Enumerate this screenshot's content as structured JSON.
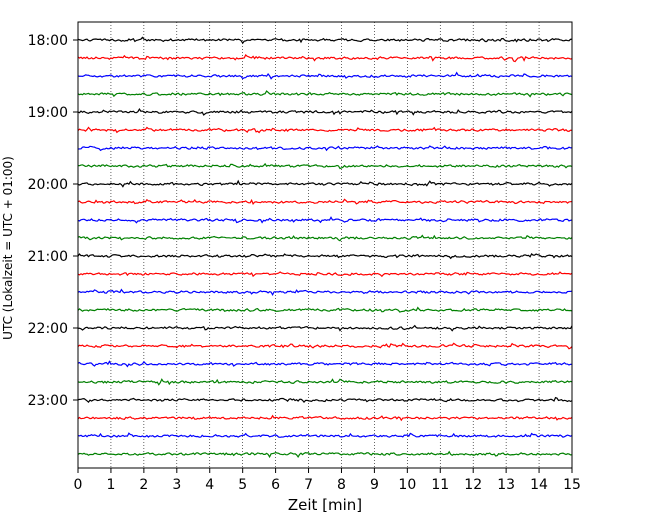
{
  "chart_data": {
    "type": "line",
    "title": "",
    "xlabel": "Zeit  [min]",
    "ylabel": "UTC (Lokalzeit = UTC + 01:00)",
    "xlim": [
      0,
      15
    ],
    "x_ticks": [
      "0",
      "1",
      "2",
      "3",
      "4",
      "5",
      "6",
      "7",
      "8",
      "9",
      "10",
      "11",
      "12",
      "13",
      "14",
      "15"
    ],
    "y_tick_labels": [
      "18:00",
      "19:00",
      "20:00",
      "21:00",
      "22:00",
      "23:00"
    ],
    "y_tick_rows": [
      0,
      4,
      8,
      12,
      16,
      20
    ],
    "grid": "vertical dotted",
    "rows": 24,
    "row_interval_minutes": 15,
    "start_time": "18:00",
    "color_cycle": [
      "#000000",
      "#ff0000",
      "#0000ff",
      "#008000"
    ]
  }
}
